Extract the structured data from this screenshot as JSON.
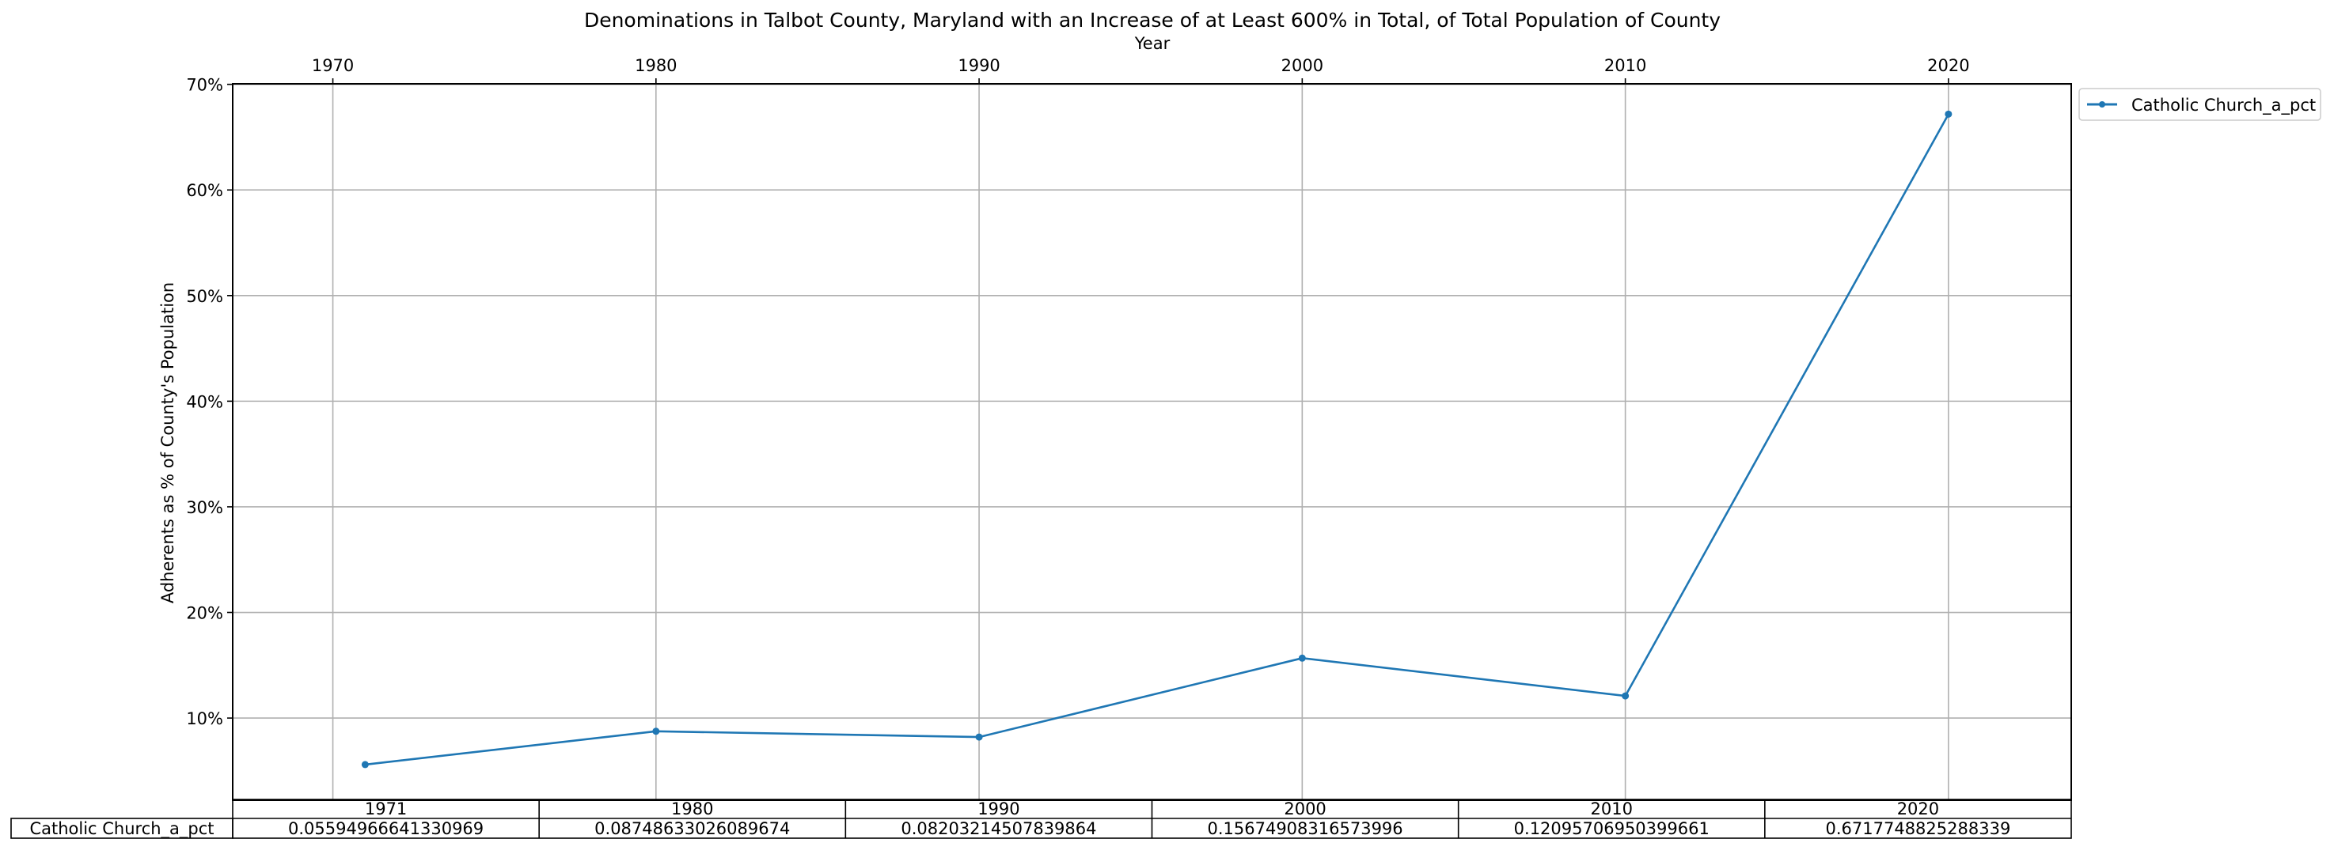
{
  "chart_data": {
    "type": "line",
    "title": "Denominations in Talbot County, Maryland with an Increase of at Least 600% in Total, of Total Population of County",
    "xlabel": "Year",
    "ylabel": "Adherents as % of County's Population",
    "xlim": [
      1966.9,
      2023.8
    ],
    "ylim": [
      0.0222,
      0.7005
    ],
    "x_ticks": [
      1970,
      1980,
      1990,
      2000,
      2010,
      2020
    ],
    "y_ticks": [
      0.1,
      0.2,
      0.3,
      0.4,
      0.5,
      0.6,
      0.7
    ],
    "y_tick_labels": [
      "10%",
      "20%",
      "30%",
      "40%",
      "50%",
      "60%",
      "70%"
    ],
    "x_axis_position": "top",
    "grid": true,
    "legend_position": "outside-top-right",
    "x": [
      1971,
      1980,
      1990,
      2000,
      2010,
      2020
    ],
    "series": [
      {
        "name": "Catholic Church_a_pct",
        "color": "#1f77b4",
        "marker": "dot",
        "values": [
          0.05594966641330969,
          0.08748633026089674,
          0.08203214507839864,
          0.15674908316573996,
          0.12095706950399661,
          0.6717748825288339
        ]
      }
    ],
    "table": {
      "col_labels": [
        "1971",
        "1980",
        "1990",
        "2000",
        "2010",
        "2020"
      ],
      "row_label": "Catholic Church_a_pct",
      "cells": [
        "0.05594966641330969",
        "0.08748633026089674",
        "0.08203214507839864",
        "0.15674908316573996",
        "0.12095706950399661",
        "0.6717748825288339"
      ]
    }
  }
}
